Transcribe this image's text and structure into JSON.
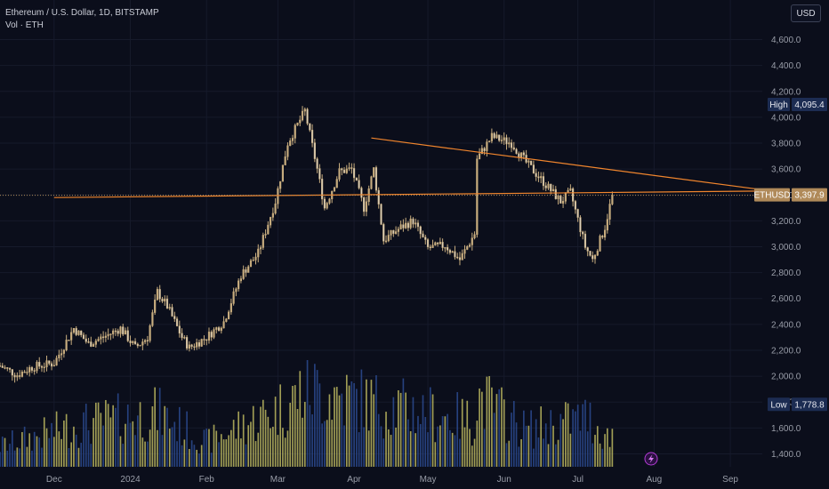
{
  "header": {
    "title": "Ethereum / U.S. Dollar, 1D, BITSTAMP",
    "volume": "Vol · ETH"
  },
  "currency_button": "USD",
  "colors": {
    "background": "#0b0e1b",
    "candle": "#c8ad7f",
    "trendline": "#f0852d",
    "volume_up": "#d4cf6a",
    "volume_down": "#2c4a8f",
    "high_low_label": "#1c2c52",
    "price_label": "#b08a5a",
    "alert_icon": "#b43bd6"
  },
  "chart_data": {
    "type": "candlestick",
    "symbol": "ETHUSD",
    "interval": "1D",
    "exchange": "BITSTAMP",
    "ylim": [
      1300,
      4700
    ],
    "yticks": [
      1400,
      1600,
      1800,
      2000,
      2200,
      2400,
      2600,
      2800,
      3000,
      3200,
      3400,
      3600,
      3800,
      4000,
      4200,
      4400,
      4600
    ],
    "ytick_labels": [
      "1,400.0",
      "1,600.0",
      "1,800.0",
      "2,000.0",
      "2,200.0",
      "2,400.0",
      "2,600.0",
      "2,800.0",
      "3,000.0",
      "3,200.0",
      "3,400.0",
      "3,600.0",
      "3,800.0",
      "4,000.0",
      "4,200.0",
      "4,400.0",
      "4,600.0"
    ],
    "xlim": [
      "2023-11-09",
      "2024-09-14"
    ],
    "xticks": [
      {
        "date": "2023-12-01",
        "label": "Dec"
      },
      {
        "date": "2024-01-01",
        "label": "2024"
      },
      {
        "date": "2024-02-01",
        "label": "Feb"
      },
      {
        "date": "2024-03-01",
        "label": "Mar"
      },
      {
        "date": "2024-04-01",
        "label": "Apr"
      },
      {
        "date": "2024-05-01",
        "label": "May"
      },
      {
        "date": "2024-06-01",
        "label": "Jun"
      },
      {
        "date": "2024-07-01",
        "label": "Jul"
      },
      {
        "date": "2024-08-01",
        "label": "Aug"
      },
      {
        "date": "2024-09-01",
        "label": "Sep"
      }
    ],
    "price_path": [
      [
        "2023-11-09",
        2080
      ],
      [
        "2023-11-16",
        2010
      ],
      [
        "2023-11-22",
        2070
      ],
      [
        "2023-12-01",
        2100
      ],
      [
        "2023-12-09",
        2370
      ],
      [
        "2023-12-15",
        2250
      ],
      [
        "2023-12-22",
        2310
      ],
      [
        "2023-12-28",
        2370
      ],
      [
        "2024-01-03",
        2220
      ],
      [
        "2024-01-08",
        2300
      ],
      [
        "2024-01-12",
        2650
      ],
      [
        "2024-01-16",
        2540
      ],
      [
        "2024-01-22",
        2300
      ],
      [
        "2024-01-25",
        2220
      ],
      [
        "2024-02-01",
        2300
      ],
      [
        "2024-02-08",
        2420
      ],
      [
        "2024-02-15",
        2780
      ],
      [
        "2024-02-22",
        2950
      ],
      [
        "2024-02-29",
        3350
      ],
      [
        "2024-03-05",
        3800
      ],
      [
        "2024-03-12",
        4050
      ],
      [
        "2024-03-17",
        3600
      ],
      [
        "2024-03-20",
        3300
      ],
      [
        "2024-03-26",
        3580
      ],
      [
        "2024-03-31",
        3600
      ],
      [
        "2024-04-05",
        3300
      ],
      [
        "2024-04-09",
        3600
      ],
      [
        "2024-04-13",
        3050
      ],
      [
        "2024-04-20",
        3150
      ],
      [
        "2024-04-25",
        3200
      ],
      [
        "2024-05-01",
        2990
      ],
      [
        "2024-05-08",
        3010
      ],
      [
        "2024-05-14",
        2900
      ],
      [
        "2024-05-20",
        3100
      ],
      [
        "2024-05-21",
        3680
      ],
      [
        "2024-05-27",
        3850
      ],
      [
        "2024-06-04",
        3800
      ],
      [
        "2024-06-10",
        3650
      ],
      [
        "2024-06-17",
        3500
      ],
      [
        "2024-06-24",
        3350
      ],
      [
        "2024-06-28",
        3420
      ],
      [
        "2024-07-04",
        3000
      ],
      [
        "2024-07-07",
        2900
      ],
      [
        "2024-07-12",
        3150
      ],
      [
        "2024-07-15",
        3397.9
      ]
    ],
    "volume_path": [
      [
        "2023-11-09",
        0.25
      ],
      [
        "2023-12-10",
        0.5
      ],
      [
        "2024-01-12",
        0.65
      ],
      [
        "2024-02-01",
        0.3
      ],
      [
        "2024-03-05",
        0.75
      ],
      [
        "2024-03-12",
        0.95
      ],
      [
        "2024-04-13",
        0.75
      ],
      [
        "2024-05-20",
        0.55
      ],
      [
        "2024-05-21",
        0.85
      ],
      [
        "2024-06-10",
        0.45
      ],
      [
        "2024-07-05",
        0.6
      ],
      [
        "2024-07-15",
        0.3
      ]
    ],
    "trendlines": [
      {
        "from": [
          "2023-12-01",
          3380
        ],
        "to": [
          "2024-09-14",
          3430
        ]
      },
      {
        "from": [
          "2024-04-08",
          3840
        ],
        "to": [
          "2024-09-14",
          3440
        ]
      }
    ],
    "last_price": {
      "ticker": "ETHUSD",
      "label": "3,397.9",
      "value": 3397.9
    },
    "high": {
      "label": "High",
      "value_label": "4,095.4",
      "value": 4095.4
    },
    "low": {
      "label": "Low",
      "value_label": "1,778.8",
      "value": 1778.8
    }
  }
}
